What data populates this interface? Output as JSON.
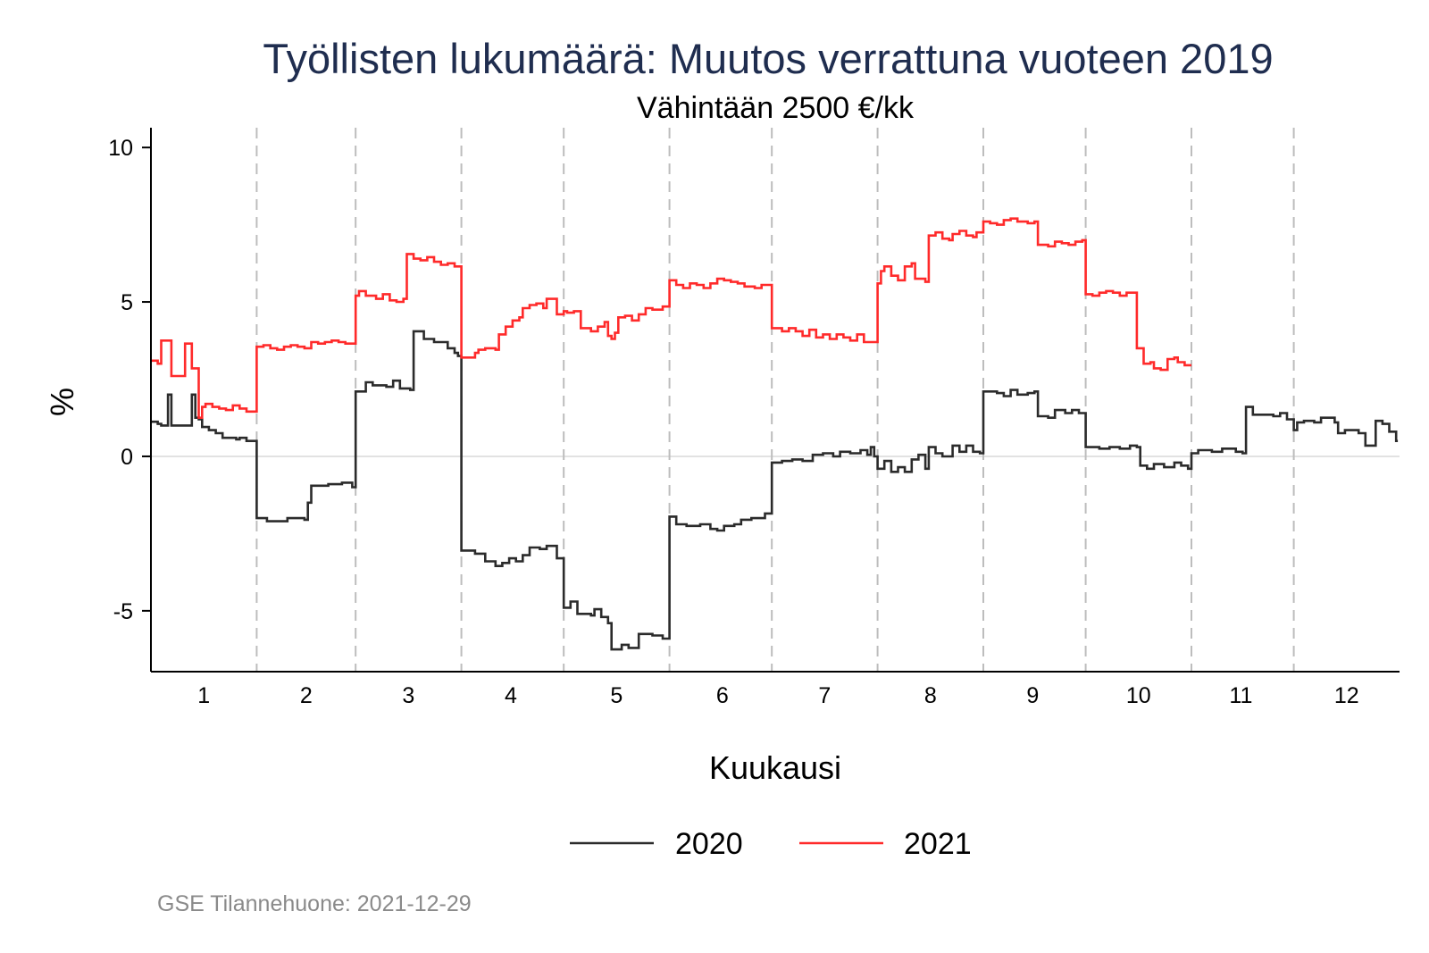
{
  "chart_data": {
    "type": "line",
    "step": true,
    "title": "Työllisten lukumäärä: Muutos verrattuna vuoteen 2019",
    "subtitle": "Vähintään 2500 €/kk",
    "xlabel": "Kuukausi",
    "ylabel": "%",
    "xlim": [
      0.5,
      366.5
    ],
    "ylim": [
      -6.97,
      10.64
    ],
    "yticks": [
      10,
      5,
      0,
      -5
    ],
    "ytick_labels": [
      "10",
      "5",
      "0",
      "-5"
    ],
    "xtick_labels": [
      "1",
      "2",
      "3",
      "4",
      "5",
      "6",
      "7",
      "8",
      "9",
      "10",
      "11",
      "12"
    ],
    "xtick_days": [
      16,
      46,
      76,
      106,
      137,
      168,
      198,
      229,
      259,
      290,
      320,
      351
    ],
    "month_boundaries": [
      32,
      61,
      92,
      122,
      153,
      183,
      214,
      245,
      275,
      306,
      336
    ],
    "grid": "zero line only",
    "legend_position": "bottom",
    "series": [
      {
        "name": "2020",
        "color": "#2b2b2b",
        "points": [
          [
            1,
            1.12
          ],
          [
            3,
            1.05
          ],
          [
            4,
            1.0
          ],
          [
            6,
            2.0
          ],
          [
            7,
            1.0
          ],
          [
            13,
            2.0
          ],
          [
            14,
            1.25
          ],
          [
            15,
            1.2
          ],
          [
            16,
            0.95
          ],
          [
            18,
            0.85
          ],
          [
            20,
            0.75
          ],
          [
            22,
            0.6
          ],
          [
            26,
            0.55
          ],
          [
            27,
            0.6
          ],
          [
            29,
            0.5
          ],
          [
            32,
            -2.0
          ],
          [
            35,
            -2.1
          ],
          [
            41,
            -2.0
          ],
          [
            46,
            -2.05
          ],
          [
            47,
            -1.5
          ],
          [
            48,
            -0.95
          ],
          [
            53,
            -0.9
          ],
          [
            57,
            -0.85
          ],
          [
            60,
            -1.0
          ],
          [
            61,
            2.1
          ],
          [
            64,
            2.4
          ],
          [
            66,
            2.3
          ],
          [
            70,
            2.25
          ],
          [
            72,
            2.45
          ],
          [
            74,
            2.2
          ],
          [
            77,
            2.15
          ],
          [
            78,
            4.05
          ],
          [
            81,
            3.8
          ],
          [
            84,
            3.7
          ],
          [
            88,
            3.5
          ],
          [
            90,
            3.35
          ],
          [
            91,
            3.25
          ],
          [
            92,
            -3.05
          ],
          [
            96,
            -3.15
          ],
          [
            99,
            -3.4
          ],
          [
            102,
            -3.55
          ],
          [
            104,
            -3.45
          ],
          [
            106,
            -3.3
          ],
          [
            108,
            -3.4
          ],
          [
            110,
            -3.2
          ],
          [
            112,
            -2.95
          ],
          [
            115,
            -3.0
          ],
          [
            117,
            -2.9
          ],
          [
            120,
            -3.3
          ],
          [
            122,
            -4.9
          ],
          [
            124,
            -4.7
          ],
          [
            126,
            -5.1
          ],
          [
            130,
            -5.15
          ],
          [
            131,
            -4.95
          ],
          [
            133,
            -5.2
          ],
          [
            135,
            -5.4
          ],
          [
            136,
            -6.25
          ],
          [
            139,
            -6.1
          ],
          [
            141,
            -6.2
          ],
          [
            144,
            -5.75
          ],
          [
            148,
            -5.8
          ],
          [
            151,
            -5.9
          ],
          [
            153,
            -1.95
          ],
          [
            155,
            -2.2
          ],
          [
            158,
            -2.25
          ],
          [
            162,
            -2.2
          ],
          [
            165,
            -2.35
          ],
          [
            167,
            -2.4
          ],
          [
            169,
            -2.25
          ],
          [
            172,
            -2.2
          ],
          [
            174,
            -2.05
          ],
          [
            177,
            -2.0
          ],
          [
            181,
            -1.85
          ],
          [
            183,
            -0.2
          ],
          [
            186,
            -0.15
          ],
          [
            189,
            -0.1
          ],
          [
            192,
            -0.15
          ],
          [
            195,
            0.05
          ],
          [
            198,
            0.1
          ],
          [
            201,
            0.0
          ],
          [
            203,
            0.15
          ],
          [
            206,
            0.1
          ],
          [
            209,
            0.2
          ],
          [
            211,
            0.05
          ],
          [
            212,
            0.3
          ],
          [
            213,
            0.0
          ],
          [
            214,
            -0.4
          ],
          [
            216,
            -0.15
          ],
          [
            218,
            -0.5
          ],
          [
            220,
            -0.35
          ],
          [
            222,
            -0.5
          ],
          [
            224,
            -0.1
          ],
          [
            226,
            0.05
          ],
          [
            228,
            -0.4
          ],
          [
            229,
            0.3
          ],
          [
            231,
            0.1
          ],
          [
            233,
            0.0
          ],
          [
            236,
            0.35
          ],
          [
            238,
            0.15
          ],
          [
            240,
            0.35
          ],
          [
            242,
            0.15
          ],
          [
            244,
            0.1
          ],
          [
            245,
            2.1
          ],
          [
            249,
            2.05
          ],
          [
            251,
            1.95
          ],
          [
            253,
            2.15
          ],
          [
            255,
            2.0
          ],
          [
            258,
            2.05
          ],
          [
            260,
            2.1
          ],
          [
            261,
            1.3
          ],
          [
            264,
            1.25
          ],
          [
            266,
            1.5
          ],
          [
            269,
            1.4
          ],
          [
            271,
            1.5
          ],
          [
            273,
            1.4
          ],
          [
            275,
            0.3
          ],
          [
            279,
            0.25
          ],
          [
            282,
            0.3
          ],
          [
            285,
            0.25
          ],
          [
            288,
            0.35
          ],
          [
            290,
            0.3
          ],
          [
            291,
            -0.3
          ],
          [
            293,
            -0.4
          ],
          [
            295,
            -0.25
          ],
          [
            298,
            -0.35
          ],
          [
            301,
            -0.2
          ],
          [
            303,
            -0.3
          ],
          [
            305,
            -0.4
          ],
          [
            306,
            0.1
          ],
          [
            308,
            0.2
          ],
          [
            312,
            0.15
          ],
          [
            315,
            0.25
          ],
          [
            319,
            0.15
          ],
          [
            321,
            0.1
          ],
          [
            322,
            1.6
          ],
          [
            324,
            1.35
          ],
          [
            330,
            1.3
          ],
          [
            332,
            1.4
          ],
          [
            334,
            1.2
          ],
          [
            336,
            0.85
          ],
          [
            337,
            1.1
          ],
          [
            339,
            1.15
          ],
          [
            342,
            1.1
          ],
          [
            344,
            1.25
          ],
          [
            348,
            1.1
          ],
          [
            349,
            0.75
          ],
          [
            351,
            0.85
          ],
          [
            355,
            0.75
          ],
          [
            357,
            0.35
          ],
          [
            360,
            1.15
          ],
          [
            362,
            1.05
          ],
          [
            364,
            0.8
          ],
          [
            366,
            0.5
          ]
        ],
        "end_day": 366.5
      },
      {
        "name": "2021",
        "color": "#ff2a2a",
        "points": [
          [
            1,
            3.1
          ],
          [
            3,
            3.0
          ],
          [
            4,
            3.75
          ],
          [
            7,
            2.6
          ],
          [
            11,
            3.65
          ],
          [
            13,
            2.85
          ],
          [
            15,
            1.25
          ],
          [
            16,
            1.6
          ],
          [
            17,
            1.7
          ],
          [
            19,
            1.6
          ],
          [
            21,
            1.55
          ],
          [
            23,
            1.5
          ],
          [
            25,
            1.65
          ],
          [
            27,
            1.55
          ],
          [
            29,
            1.45
          ],
          [
            32,
            3.55
          ],
          [
            34,
            3.6
          ],
          [
            36,
            3.5
          ],
          [
            38,
            3.45
          ],
          [
            40,
            3.55
          ],
          [
            42,
            3.6
          ],
          [
            44,
            3.55
          ],
          [
            46,
            3.5
          ],
          [
            48,
            3.7
          ],
          [
            50,
            3.65
          ],
          [
            52,
            3.7
          ],
          [
            54,
            3.75
          ],
          [
            56,
            3.7
          ],
          [
            58,
            3.65
          ],
          [
            61,
            5.2
          ],
          [
            62,
            5.35
          ],
          [
            64,
            5.2
          ],
          [
            67,
            5.1
          ],
          [
            69,
            5.25
          ],
          [
            71,
            5.05
          ],
          [
            73,
            5.0
          ],
          [
            75,
            5.1
          ],
          [
            76,
            6.55
          ],
          [
            78,
            6.4
          ],
          [
            80,
            6.35
          ],
          [
            82,
            6.45
          ],
          [
            84,
            6.3
          ],
          [
            86,
            6.2
          ],
          [
            88,
            6.25
          ],
          [
            90,
            6.15
          ],
          [
            92,
            3.2
          ],
          [
            96,
            3.35
          ],
          [
            97,
            3.45
          ],
          [
            99,
            3.5
          ],
          [
            102,
            3.45
          ],
          [
            103,
            3.95
          ],
          [
            105,
            4.2
          ],
          [
            107,
            4.4
          ],
          [
            109,
            4.5
          ],
          [
            110,
            4.8
          ],
          [
            112,
            4.9
          ],
          [
            114,
            4.95
          ],
          [
            116,
            4.8
          ],
          [
            117,
            5.1
          ],
          [
            120,
            4.6
          ],
          [
            122,
            4.7
          ],
          [
            123,
            4.65
          ],
          [
            125,
            4.7
          ],
          [
            127,
            4.15
          ],
          [
            130,
            4.05
          ],
          [
            132,
            4.2
          ],
          [
            134,
            4.35
          ],
          [
            135,
            3.9
          ],
          [
            136,
            3.8
          ],
          [
            137,
            4.0
          ],
          [
            138,
            4.5
          ],
          [
            140,
            4.55
          ],
          [
            142,
            4.4
          ],
          [
            144,
            4.6
          ],
          [
            146,
            4.8
          ],
          [
            148,
            4.75
          ],
          [
            151,
            4.85
          ],
          [
            153,
            5.7
          ],
          [
            155,
            5.55
          ],
          [
            157,
            5.45
          ],
          [
            159,
            5.6
          ],
          [
            161,
            5.55
          ],
          [
            163,
            5.45
          ],
          [
            165,
            5.6
          ],
          [
            167,
            5.75
          ],
          [
            169,
            5.7
          ],
          [
            171,
            5.65
          ],
          [
            173,
            5.6
          ],
          [
            175,
            5.5
          ],
          [
            178,
            5.45
          ],
          [
            180,
            5.55
          ],
          [
            183,
            4.15
          ],
          [
            186,
            4.05
          ],
          [
            188,
            4.15
          ],
          [
            190,
            4.05
          ],
          [
            192,
            3.9
          ],
          [
            194,
            4.1
          ],
          [
            196,
            3.85
          ],
          [
            198,
            3.95
          ],
          [
            200,
            3.8
          ],
          [
            202,
            3.95
          ],
          [
            204,
            3.85
          ],
          [
            206,
            3.75
          ],
          [
            208,
            3.95
          ],
          [
            210,
            3.7
          ],
          [
            214,
            5.6
          ],
          [
            215,
            6.0
          ],
          [
            216,
            6.15
          ],
          [
            218,
            5.85
          ],
          [
            220,
            5.7
          ],
          [
            222,
            6.15
          ],
          [
            224,
            6.25
          ],
          [
            225,
            5.75
          ],
          [
            228,
            5.65
          ],
          [
            229,
            7.15
          ],
          [
            231,
            7.25
          ],
          [
            233,
            7.05
          ],
          [
            235,
            7.0
          ],
          [
            236,
            7.2
          ],
          [
            238,
            7.3
          ],
          [
            240,
            7.15
          ],
          [
            242,
            7.1
          ],
          [
            243,
            7.25
          ],
          [
            245,
            7.6
          ],
          [
            247,
            7.55
          ],
          [
            249,
            7.5
          ],
          [
            251,
            7.65
          ],
          [
            253,
            7.7
          ],
          [
            255,
            7.6
          ],
          [
            258,
            7.55
          ],
          [
            260,
            7.6
          ],
          [
            261,
            6.85
          ],
          [
            264,
            6.8
          ],
          [
            266,
            6.95
          ],
          [
            268,
            6.9
          ],
          [
            270,
            6.85
          ],
          [
            272,
            6.95
          ],
          [
            274,
            7.0
          ],
          [
            275,
            5.25
          ],
          [
            277,
            5.2
          ],
          [
            279,
            5.3
          ],
          [
            281,
            5.35
          ],
          [
            283,
            5.3
          ],
          [
            285,
            5.2
          ],
          [
            287,
            5.3
          ],
          [
            290,
            3.5
          ],
          [
            292,
            3.0
          ],
          [
            294,
            3.05
          ],
          [
            295,
            2.85
          ],
          [
            297,
            2.8
          ],
          [
            299,
            3.15
          ],
          [
            301,
            3.2
          ],
          [
            302,
            3.05
          ],
          [
            304,
            2.95
          ]
        ],
        "end_day": 306
      }
    ]
  },
  "footer": "GSE Tilannehuone: 2021-12-29"
}
